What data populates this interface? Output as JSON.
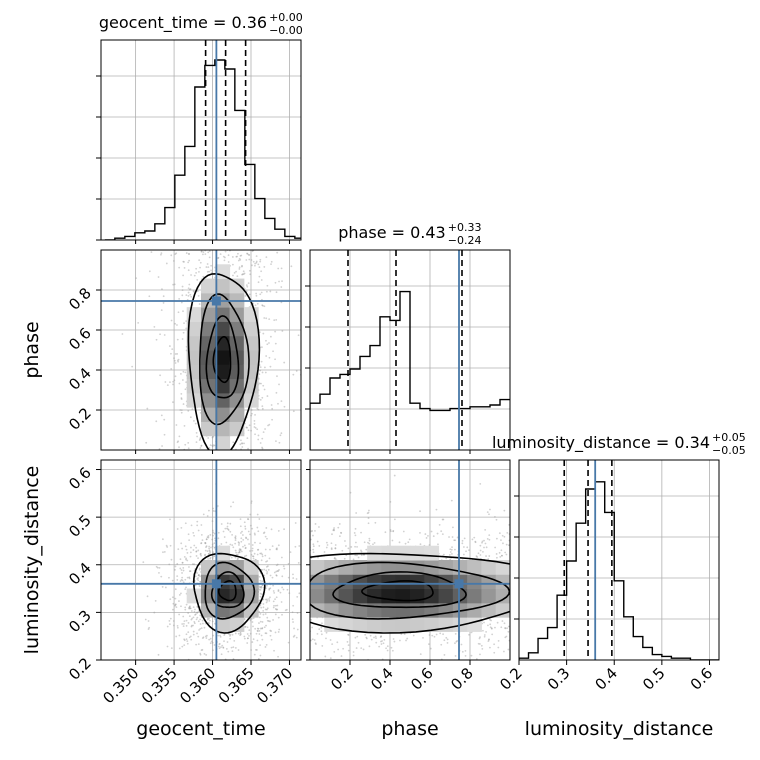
{
  "chart_data": {
    "type": "corner",
    "parameters": [
      "geocent_time",
      "phase",
      "luminosity_distance"
    ],
    "titles": [
      {
        "name": "geocent_time",
        "median": "0.36",
        "plus": "+0.00",
        "minus": "−0.00"
      },
      {
        "name": "phase",
        "median": "0.43",
        "plus": "+0.33",
        "minus": "−0.24"
      },
      {
        "name": "luminosity_distance",
        "median": "0.34",
        "plus": "+0.05",
        "minus": "−0.05"
      }
    ],
    "ranges": [
      [
        0.3455,
        0.3715
      ],
      [
        0.0,
        1.0
      ],
      [
        0.2,
        0.62
      ]
    ],
    "ticks": [
      {
        "values": [
          0.35,
          0.355,
          0.36,
          0.365,
          0.37
        ],
        "labels": [
          "0.350",
          "0.355",
          "0.360",
          "0.365",
          "0.370"
        ]
      },
      {
        "values": [
          0.2,
          0.4,
          0.6,
          0.8
        ],
        "labels": [
          "0.2",
          "0.4",
          "0.6",
          "0.8"
        ]
      },
      {
        "values": [
          0.2,
          0.3,
          0.4,
          0.5,
          0.6
        ],
        "labels": [
          "0.2",
          "0.3",
          "0.4",
          "0.5",
          "0.6"
        ]
      }
    ],
    "truths": [
      0.3605,
      0.745,
      0.36
    ],
    "quantiles": [
      [
        0.3591,
        0.3617,
        0.3643
      ],
      [
        0.19,
        0.43,
        0.76
      ],
      [
        0.295,
        0.345,
        0.395
      ]
    ],
    "histograms": [
      {
        "bins": [
          0.346,
          0.3473,
          0.3486,
          0.3499,
          0.3512,
          0.3525,
          0.3538,
          0.3551,
          0.3564,
          0.3577,
          0.359,
          0.3603,
          0.3616,
          0.3629,
          0.3642,
          0.3655,
          0.3668,
          0.3681,
          0.3694,
          0.3707,
          0.3715
        ],
        "counts": [
          0.0,
          0.01,
          0.02,
          0.04,
          0.05,
          0.09,
          0.18,
          0.36,
          0.52,
          0.85,
          0.97,
          1.0,
          0.95,
          0.72,
          0.42,
          0.23,
          0.12,
          0.06,
          0.02,
          0.01
        ]
      },
      {
        "bins": [
          0.0,
          0.05,
          0.1,
          0.15,
          0.2,
          0.25,
          0.3,
          0.35,
          0.4,
          0.45,
          0.5,
          0.55,
          0.6,
          0.65,
          0.7,
          0.75,
          0.8,
          0.85,
          0.9,
          0.95,
          1.0
        ],
        "counts": [
          0.26,
          0.31,
          0.4,
          0.42,
          0.45,
          0.52,
          0.58,
          0.74,
          0.72,
          0.88,
          0.26,
          0.23,
          0.22,
          0.22,
          0.23,
          0.23,
          0.24,
          0.24,
          0.25,
          0.28
        ]
      },
      {
        "bins": [
          0.2,
          0.22,
          0.24,
          0.26,
          0.28,
          0.3,
          0.32,
          0.34,
          0.36,
          0.38,
          0.4,
          0.42,
          0.44,
          0.46,
          0.48,
          0.5,
          0.52,
          0.54,
          0.56,
          0.58,
          0.6,
          0.62
        ],
        "counts": [
          0.01,
          0.04,
          0.12,
          0.18,
          0.36,
          0.55,
          0.76,
          0.95,
          0.99,
          0.82,
          0.44,
          0.24,
          0.13,
          0.07,
          0.03,
          0.02,
          0.01,
          0.01,
          0.0,
          0.0,
          0.0
        ]
      }
    ],
    "densities": [
      {
        "x_param": "geocent_time",
        "y_param": "phase",
        "center": [
          0.3613,
          0.45
        ],
        "spread": [
          0.0022,
          0.12
        ]
      },
      {
        "x_param": "geocent_time",
        "y_param": "luminosity_distance",
        "center": [
          0.362,
          0.345
        ],
        "spread": [
          0.0022,
          0.04
        ]
      },
      {
        "x_param": "phase",
        "y_param": "luminosity_distance",
        "center": [
          0.45,
          0.345
        ],
        "spread": [
          0.25,
          0.04
        ]
      }
    ],
    "colors": {
      "truth": "#4878a8",
      "hist": "#000000",
      "quantile": "#000000",
      "grid": "#b0b0b0",
      "scatter": "#999999"
    }
  }
}
